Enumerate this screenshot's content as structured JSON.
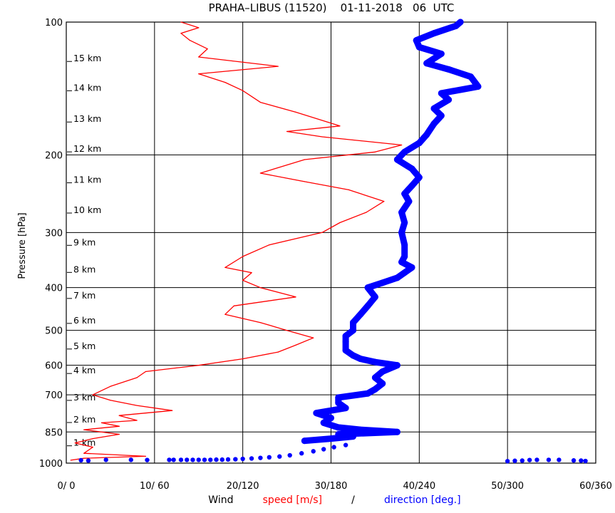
{
  "chart_data": {
    "type": "line",
    "title": "PRAHA–LIBUS (11520)    01-11-2018   06  UTC",
    "ylabel": "Pressure [hPa]",
    "xlabel": {
      "prefix": "Wind",
      "speed": "speed [m/s]",
      "separator": "/",
      "direction": "direction [deg.]"
    },
    "colors": {
      "speed": "#ff0000",
      "direction": "#0000ff",
      "grid": "#000000"
    },
    "y_scale": "log",
    "ylim": [
      1000,
      100
    ],
    "xlim_speed": [
      0,
      60
    ],
    "xlim_direction": [
      0,
      360
    ],
    "grid": true,
    "pressure_ticks": [
      "100",
      "200",
      "300",
      "400",
      "500",
      "600",
      "700",
      "850",
      "1000"
    ],
    "pressure_tick_values": [
      100,
      200,
      300,
      400,
      500,
      600,
      700,
      850,
      1000
    ],
    "x_ticks": [
      "0/ 0",
      "10/ 60",
      "20/120",
      "30/180",
      "40/240",
      "50/300",
      "60/360"
    ],
    "x_tick_values": [
      0,
      10,
      20,
      30,
      40,
      50,
      60
    ],
    "height_labels": [
      {
        "label": "1 km",
        "p": 900
      },
      {
        "label": "2 km",
        "p": 797
      },
      {
        "label": "3 km",
        "p": 710
      },
      {
        "label": "4 km",
        "p": 617
      },
      {
        "label": "5 km",
        "p": 543
      },
      {
        "label": "6 km",
        "p": 475
      },
      {
        "label": "7 km",
        "p": 417
      },
      {
        "label": "8 km",
        "p": 364
      },
      {
        "label": "9 km",
        "p": 316
      },
      {
        "label": "10 km",
        "p": 267
      },
      {
        "label": "11 km",
        "p": 228
      },
      {
        "label": "12 km",
        "p": 194
      },
      {
        "label": "13 km",
        "p": 166
      },
      {
        "label": "14 km",
        "p": 141
      },
      {
        "label": "15 km",
        "p": 121
      }
    ],
    "series": [
      {
        "name": "speed",
        "unit": "m/s",
        "points": [
          [
            0.5,
            985
          ],
          [
            2,
            975
          ],
          [
            9,
            965
          ],
          [
            2,
            950
          ],
          [
            3,
            920
          ],
          [
            1,
            900
          ],
          [
            3,
            880
          ],
          [
            6,
            860
          ],
          [
            2,
            840
          ],
          [
            6,
            825
          ],
          [
            4,
            810
          ],
          [
            8,
            800
          ],
          [
            6,
            780
          ],
          [
            12,
            760
          ],
          [
            8,
            740
          ],
          [
            5,
            720
          ],
          [
            3,
            700
          ],
          [
            5,
            670
          ],
          [
            8,
            640
          ],
          [
            9,
            620
          ],
          [
            15,
            600
          ],
          [
            20,
            580
          ],
          [
            24,
            560
          ],
          [
            26,
            540
          ],
          [
            28,
            520
          ],
          [
            25,
            500
          ],
          [
            22,
            480
          ],
          [
            18,
            460
          ],
          [
            19,
            440
          ],
          [
            26,
            420
          ],
          [
            22,
            400
          ],
          [
            20,
            385
          ],
          [
            21,
            370
          ],
          [
            18,
            360
          ],
          [
            20,
            340
          ],
          [
            23,
            320
          ],
          [
            29,
            300
          ],
          [
            31,
            285
          ],
          [
            34,
            270
          ],
          [
            36,
            255
          ],
          [
            32,
            240
          ],
          [
            27,
            230
          ],
          [
            22,
            220
          ],
          [
            27,
            205
          ],
          [
            35,
            197
          ],
          [
            38,
            190
          ],
          [
            29,
            182
          ],
          [
            25,
            177
          ],
          [
            31,
            172
          ],
          [
            26,
            160
          ],
          [
            22,
            152
          ],
          [
            20,
            143
          ],
          [
            18,
            137
          ],
          [
            15,
            131
          ],
          [
            24,
            126
          ],
          [
            15,
            120
          ],
          [
            16,
            115
          ],
          [
            14,
            110
          ],
          [
            13,
            106
          ],
          [
            15,
            103
          ],
          [
            13,
            100
          ]
        ]
      },
      {
        "name": "direction",
        "unit": "deg.",
        "thick": [
          [
            162,
            890
          ],
          [
            180,
            880
          ],
          [
            195,
            870
          ],
          [
            185,
            860
          ],
          [
            225,
            850
          ],
          [
            200,
            840
          ],
          [
            185,
            830
          ],
          [
            175,
            810
          ],
          [
            180,
            790
          ],
          [
            170,
            770
          ],
          [
            190,
            750
          ],
          [
            185,
            730
          ],
          [
            185,
            710
          ],
          [
            205,
            695
          ],
          [
            210,
            680
          ],
          [
            215,
            660
          ],
          [
            210,
            640
          ],
          [
            215,
            620
          ],
          [
            225,
            600
          ],
          [
            210,
            590
          ],
          [
            200,
            580
          ],
          [
            195,
            570
          ],
          [
            190,
            555
          ],
          [
            190,
            530
          ],
          [
            190,
            515
          ],
          [
            195,
            500
          ],
          [
            195,
            480
          ],
          [
            200,
            460
          ],
          [
            205,
            440
          ],
          [
            210,
            420
          ],
          [
            205,
            400
          ],
          [
            215,
            390
          ],
          [
            225,
            380
          ],
          [
            230,
            370
          ],
          [
            235,
            360
          ],
          [
            228,
            350
          ],
          [
            230,
            340
          ],
          [
            230,
            320
          ],
          [
            228,
            300
          ],
          [
            230,
            285
          ],
          [
            228,
            270
          ],
          [
            233,
            255
          ],
          [
            230,
            245
          ],
          [
            235,
            235
          ],
          [
            240,
            225
          ],
          [
            235,
            215
          ],
          [
            225,
            205
          ],
          [
            230,
            197
          ],
          [
            240,
            188
          ],
          [
            245,
            180
          ],
          [
            250,
            170
          ],
          [
            255,
            163
          ],
          [
            250,
            157
          ],
          [
            260,
            150
          ],
          [
            255,
            145
          ],
          [
            280,
            140
          ],
          [
            275,
            133
          ],
          [
            260,
            128
          ],
          [
            245,
            124
          ],
          [
            255,
            118
          ],
          [
            240,
            114
          ],
          [
            238,
            110
          ],
          [
            250,
            106
          ],
          [
            265,
            102
          ],
          [
            268,
            100
          ]
        ],
        "scatter": [
          [
            10,
            985
          ],
          [
            15,
            987
          ],
          [
            27,
            983
          ],
          [
            44,
            983
          ],
          [
            55,
            984
          ],
          [
            70,
            983
          ],
          [
            73,
            983
          ],
          [
            78,
            983
          ],
          [
            82,
            983
          ],
          [
            86,
            983
          ],
          [
            90,
            983
          ],
          [
            94,
            983
          ],
          [
            98,
            983
          ],
          [
            102,
            982
          ],
          [
            106,
            982
          ],
          [
            110,
            981
          ],
          [
            115,
            980
          ],
          [
            120,
            978
          ],
          [
            126,
            976
          ],
          [
            132,
            973
          ],
          [
            138,
            970
          ],
          [
            145,
            966
          ],
          [
            152,
            960
          ],
          [
            160,
            950
          ],
          [
            168,
            940
          ],
          [
            175,
            930
          ],
          [
            182,
            920
          ],
          [
            190,
            910
          ],
          [
            300,
            990
          ],
          [
            305,
            988
          ],
          [
            310,
            987
          ],
          [
            315,
            984
          ],
          [
            320,
            983
          ],
          [
            328,
            983
          ],
          [
            335,
            983
          ],
          [
            345,
            986
          ],
          [
            350,
            987
          ],
          [
            353,
            989
          ]
        ]
      }
    ]
  }
}
